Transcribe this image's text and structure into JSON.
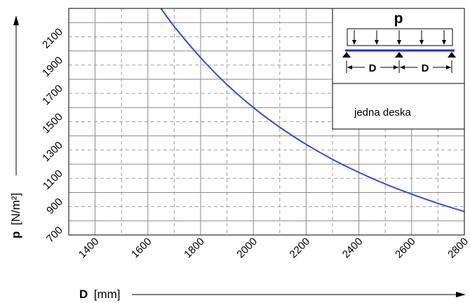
{
  "chart_data": {
    "type": "line",
    "xlabel_symbol": "D",
    "xlabel_unit": "[mm]",
    "ylabel_symbol": "p",
    "ylabel_unit": "[N/m²]",
    "xlim": [
      1300,
      2800
    ],
    "ylim": [
      600,
      2200
    ],
    "x_ticks": [
      1400,
      1600,
      1800,
      2000,
      2200,
      2400,
      2600,
      2800
    ],
    "y_ticks": [
      700,
      900,
      1100,
      1300,
      1500,
      1700,
      1900,
      2100
    ],
    "grid": true,
    "series": [
      {
        "color": "#2a4fe0",
        "x": [
          1650,
          1700,
          1800,
          1900,
          2000,
          2100,
          2200,
          2300,
          2400,
          2500,
          2600,
          2700,
          2800
        ],
        "y": [
          2200,
          2072,
          1852,
          1662,
          1500,
          1361,
          1240,
          1134,
          1042,
          960,
          888,
          823,
          765
        ]
      }
    ],
    "inset": {
      "load_symbol": "p",
      "span_label": "D",
      "note": "jedna deska"
    }
  }
}
